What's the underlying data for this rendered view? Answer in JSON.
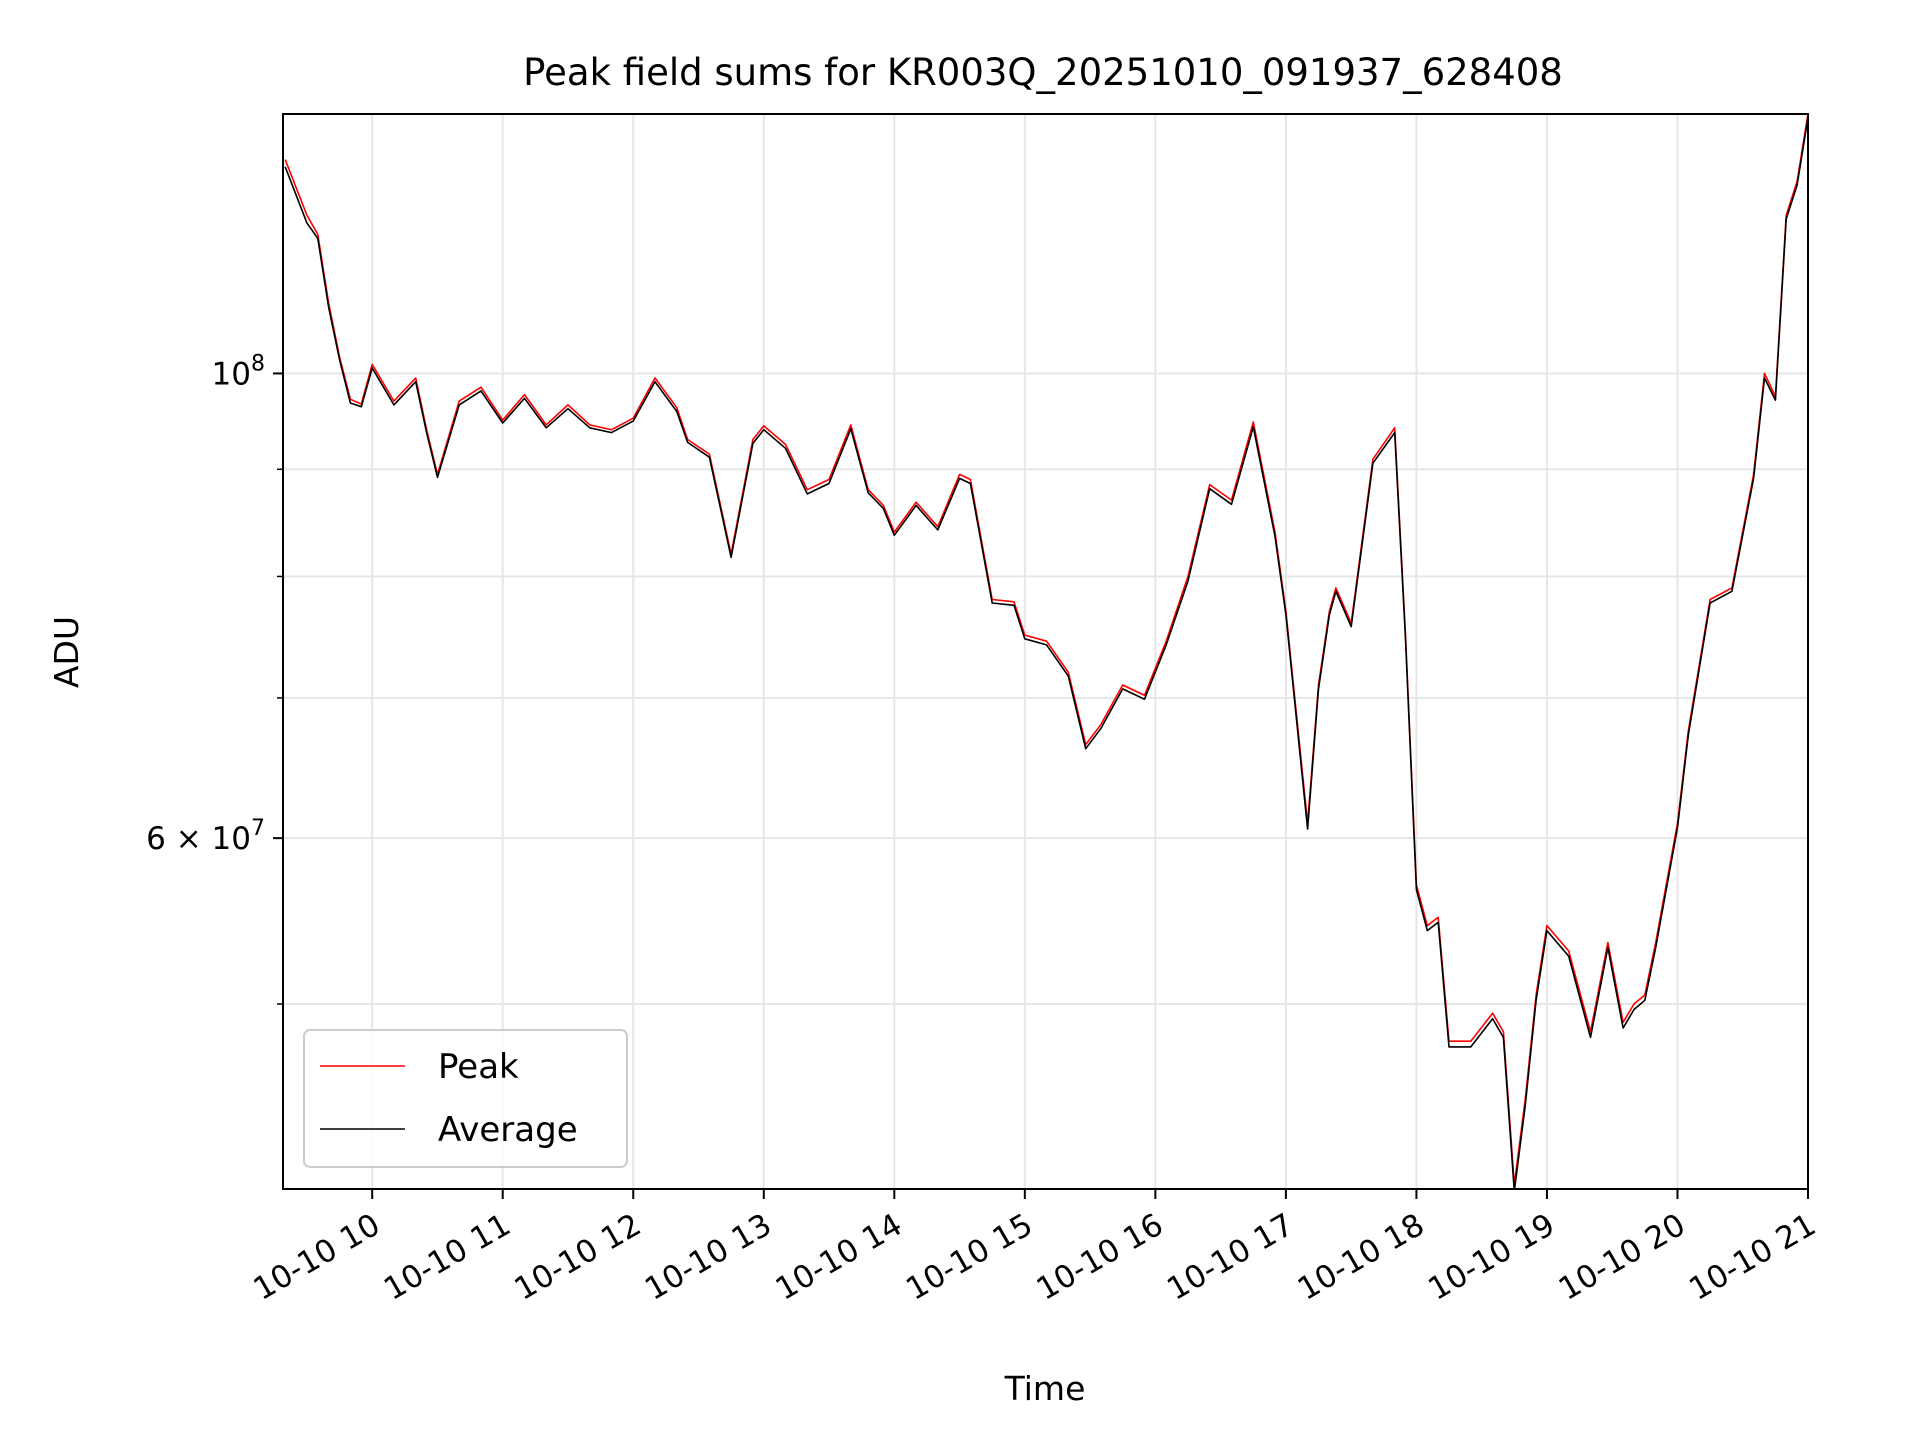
{
  "chart_data": {
    "type": "line",
    "title": "Peak field sums for KR003Q_20251010_091937_628408",
    "xlabel": "Time",
    "ylabel": "ADU",
    "y_scale": "log",
    "ylim": [
      40800000,
      133000000
    ],
    "xlim": [
      "2025-10-10 09:19",
      "2025-10-10 21:00"
    ],
    "x_ticks": [
      "10-10 10",
      "10-10 11",
      "10-10 12",
      "10-10 13",
      "10-10 14",
      "10-10 15",
      "10-10 16",
      "10-10 17",
      "10-10 18",
      "10-10 19",
      "10-10 20",
      "10-10 21"
    ],
    "y_tick_labels": [
      {
        "value": 100000000,
        "mantissa": "",
        "base": "10",
        "exp": "8"
      },
      {
        "value": 60000000,
        "mantissa": "6 × ",
        "base": "10",
        "exp": "7"
      }
    ],
    "y_minor_ticks": [
      50000000,
      70000000,
      80000000,
      90000000
    ],
    "grid": true,
    "legend_position": "lower-left",
    "x": [
      "2025-10-10 09:20",
      "2025-10-10 09:30",
      "2025-10-10 09:35",
      "2025-10-10 09:40",
      "2025-10-10 09:45",
      "2025-10-10 09:50",
      "2025-10-10 09:55",
      "2025-10-10 10:00",
      "2025-10-10 10:10",
      "2025-10-10 10:20",
      "2025-10-10 10:25",
      "2025-10-10 10:30",
      "2025-10-10 10:40",
      "2025-10-10 10:50",
      "2025-10-10 11:00",
      "2025-10-10 11:10",
      "2025-10-10 11:20",
      "2025-10-10 11:30",
      "2025-10-10 11:40",
      "2025-10-10 11:50",
      "2025-10-10 12:00",
      "2025-10-10 12:10",
      "2025-10-10 12:20",
      "2025-10-10 12:25",
      "2025-10-10 12:35",
      "2025-10-10 12:45",
      "2025-10-10 12:55",
      "2025-10-10 13:00",
      "2025-10-10 13:10",
      "2025-10-10 13:20",
      "2025-10-10 13:30",
      "2025-10-10 13:40",
      "2025-10-10 13:48",
      "2025-10-10 13:55",
      "2025-10-10 14:00",
      "2025-10-10 14:10",
      "2025-10-10 14:20",
      "2025-10-10 14:30",
      "2025-10-10 14:35",
      "2025-10-10 14:45",
      "2025-10-10 14:55",
      "2025-10-10 15:00",
      "2025-10-10 15:10",
      "2025-10-10 15:20",
      "2025-10-10 15:28",
      "2025-10-10 15:35",
      "2025-10-10 15:45",
      "2025-10-10 15:55",
      "2025-10-10 16:05",
      "2025-10-10 16:15",
      "2025-10-10 16:25",
      "2025-10-10 16:35",
      "2025-10-10 16:45",
      "2025-10-10 16:55",
      "2025-10-10 17:00",
      "2025-10-10 17:10",
      "2025-10-10 17:15",
      "2025-10-10 17:20",
      "2025-10-10 17:23",
      "2025-10-10 17:30",
      "2025-10-10 17:40",
      "2025-10-10 17:50",
      "2025-10-10 17:55",
      "2025-10-10 18:00",
      "2025-10-10 18:05",
      "2025-10-10 18:10",
      "2025-10-10 18:15",
      "2025-10-10 18:25",
      "2025-10-10 18:35",
      "2025-10-10 18:40",
      "2025-10-10 18:45",
      "2025-10-10 18:50",
      "2025-10-10 18:55",
      "2025-10-10 19:00",
      "2025-10-10 19:10",
      "2025-10-10 19:20",
      "2025-10-10 19:28",
      "2025-10-10 19:35",
      "2025-10-10 19:40",
      "2025-10-10 19:45",
      "2025-10-10 19:50",
      "2025-10-10 20:00",
      "2025-10-10 20:05",
      "2025-10-10 20:15",
      "2025-10-10 20:25",
      "2025-10-10 20:35",
      "2025-10-10 20:40",
      "2025-10-10 20:45",
      "2025-10-10 20:50",
      "2025-10-10 20:55",
      "2025-10-10 21:00"
    ],
    "series": [
      {
        "name": "Peak",
        "color": "#ff0000",
        "values": [
          126500000,
          119000000,
          116500000,
          108000000,
          101800000,
          97200000,
          96700000,
          101000000,
          97000000,
          99500000,
          94000000,
          89500000,
          97000000,
          98500000,
          95000000,
          97700000,
          94500000,
          96600000,
          94500000,
          94000000,
          95200000,
          99500000,
          96300000,
          93000000,
          91500000,
          82000000,
          93000000,
          94400000,
          92500000,
          88000000,
          89000000,
          94500000,
          88000000,
          86500000,
          84000000,
          86800000,
          84500000,
          89500000,
          89000000,
          78000000,
          77800000,
          75000000,
          74500000,
          72000000,
          66500000,
          68000000,
          71000000,
          70200000,
          74500000,
          80000000,
          88500000,
          87000000,
          94800000,
          84000000,
          77000000,
          61000000,
          71000000,
          77000000,
          79000000,
          76000000,
          91000000,
          94200000,
          75000000,
          57000000,
          54500000,
          55000000,
          48000000,
          48000000,
          49500000,
          48500000,
          41000000,
          45000000,
          50500000,
          54500000,
          53000000,
          48500000,
          53500000,
          49000000,
          50000000,
          50500000,
          53500000,
          61000000,
          67500000,
          78000000,
          79000000,
          89500000,
          100000000,
          97500000,
          119000000,
          123500000,
          133000000
        ]
      },
      {
        "name": "Average",
        "color": "#000000",
        "values": [
          125500000,
          118000000,
          116000000,
          107500000,
          101500000,
          96800000,
          96400000,
          100600000,
          96600000,
          99100000,
          93700000,
          89200000,
          96600000,
          98100000,
          94700000,
          97300000,
          94200000,
          96200000,
          94200000,
          93700000,
          94900000,
          99100000,
          95900000,
          92700000,
          91200000,
          81700000,
          92600000,
          94000000,
          92100000,
          87600000,
          88600000,
          94100000,
          87700000,
          86200000,
          83700000,
          86500000,
          84200000,
          89100000,
          88600000,
          77700000,
          77500000,
          74700000,
          74200000,
          71700000,
          66200000,
          67700000,
          70700000,
          69900000,
          74200000,
          79600000,
          88100000,
          86600000,
          94300000,
          83600000,
          76700000,
          60600000,
          70700000,
          76700000,
          78700000,
          75700000,
          90600000,
          93700000,
          74700000,
          56700000,
          54200000,
          54700000,
          47700000,
          47700000,
          49200000,
          48200000,
          40700000,
          44700000,
          50200000,
          54200000,
          52700000,
          48200000,
          53200000,
          48700000,
          49700000,
          50200000,
          53200000,
          60700000,
          67200000,
          77700000,
          78700000,
          89100000,
          99500000,
          97100000,
          118500000,
          123000000,
          132500000
        ]
      }
    ]
  }
}
